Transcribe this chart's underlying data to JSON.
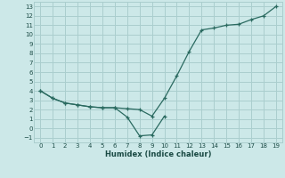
{
  "xlabel": "Humidex (Indice chaleur)",
  "bg_color": "#cce8e8",
  "grid_color": "#aacece",
  "line_color": "#2a6a60",
  "line1_x": [
    0,
    1,
    2,
    3,
    4,
    5,
    6,
    7,
    8,
    9,
    10,
    11,
    12,
    13,
    14,
    15,
    16,
    17,
    18,
    19
  ],
  "line1_y": [
    4.0,
    3.2,
    2.7,
    2.5,
    2.3,
    2.2,
    2.2,
    2.1,
    2.0,
    1.3,
    3.2,
    5.6,
    8.2,
    10.5,
    10.7,
    11.0,
    11.1,
    11.6,
    12.0,
    13.0
  ],
  "line2_x": [
    0,
    1,
    2,
    3,
    4,
    5,
    6,
    7,
    8,
    9,
    10
  ],
  "line2_y": [
    4.0,
    3.2,
    2.7,
    2.5,
    2.3,
    2.2,
    2.2,
    1.2,
    -0.8,
    -0.7,
    1.3
  ],
  "xlim": [
    -0.5,
    19.5
  ],
  "ylim": [
    -1.5,
    13.5
  ],
  "xticks": [
    0,
    1,
    2,
    3,
    4,
    5,
    6,
    7,
    8,
    9,
    10,
    11,
    12,
    13,
    14,
    15,
    16,
    17,
    18,
    19
  ],
  "yticks": [
    -1,
    0,
    1,
    2,
    3,
    4,
    5,
    6,
    7,
    8,
    9,
    10,
    11,
    12,
    13
  ],
  "tick_fontsize": 5.0,
  "xlabel_fontsize": 6.0
}
